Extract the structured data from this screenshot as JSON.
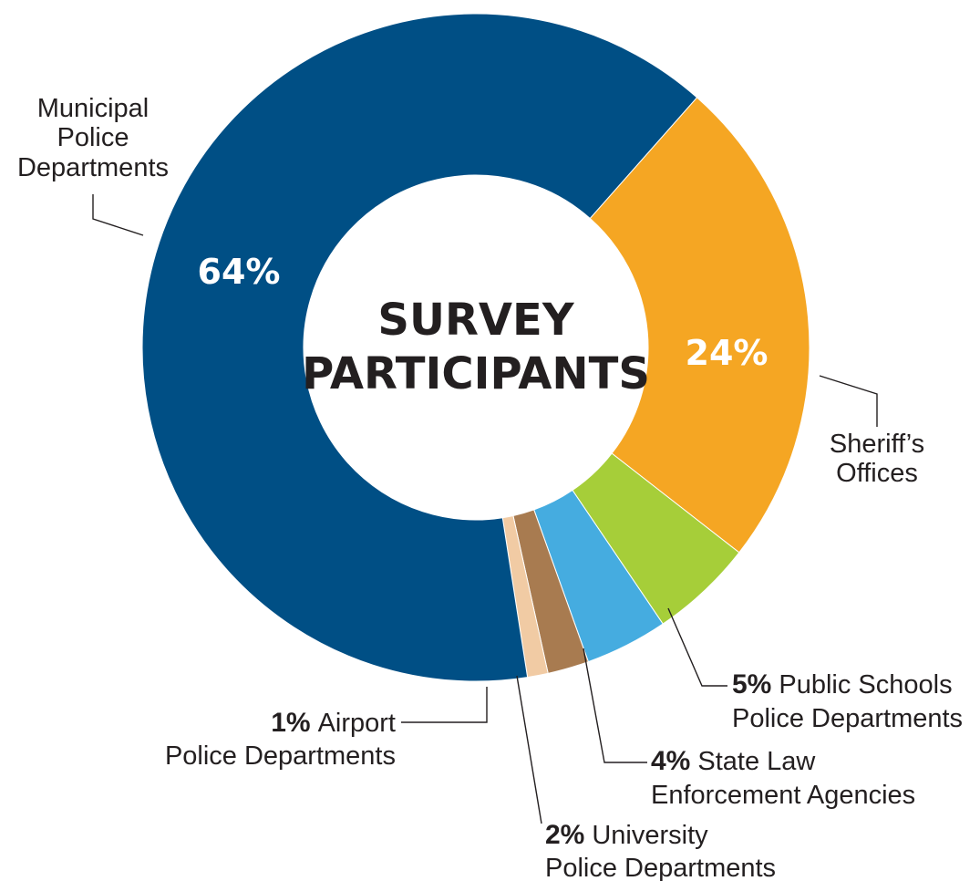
{
  "chart_data": {
    "type": "pie",
    "donut": true,
    "center_title": [
      "SURVEY",
      "PARTICIPANTS"
    ],
    "slices": [
      {
        "id": "sheriff",
        "value": 24,
        "pct_label": "24%",
        "label_lines": [
          "Sheriff’s",
          "Offices"
        ],
        "color": "#f5a623"
      },
      {
        "id": "public-schools",
        "value": 5,
        "pct_label": "5%",
        "label_lines": [
          "Public Schools",
          "Police Departments"
        ],
        "color": "#a6ce39"
      },
      {
        "id": "state-law",
        "value": 4,
        "pct_label": "4%",
        "label_lines": [
          "State Law",
          "Enforcement Agencies"
        ],
        "color": "#45ace0"
      },
      {
        "id": "university",
        "value": 2,
        "pct_label": "2%",
        "label_lines": [
          "University",
          "Police Departments"
        ],
        "color": "#a87b50"
      },
      {
        "id": "airport",
        "value": 1,
        "pct_label": "1%",
        "label_lines": [
          "Airport",
          "Police Departments"
        ],
        "color": "#f1cba4"
      },
      {
        "id": "municipal",
        "value": 64,
        "pct_label": "64%",
        "label_lines": [
          "Municipal",
          "Police",
          "Departments"
        ],
        "color": "#004f85"
      }
    ]
  }
}
